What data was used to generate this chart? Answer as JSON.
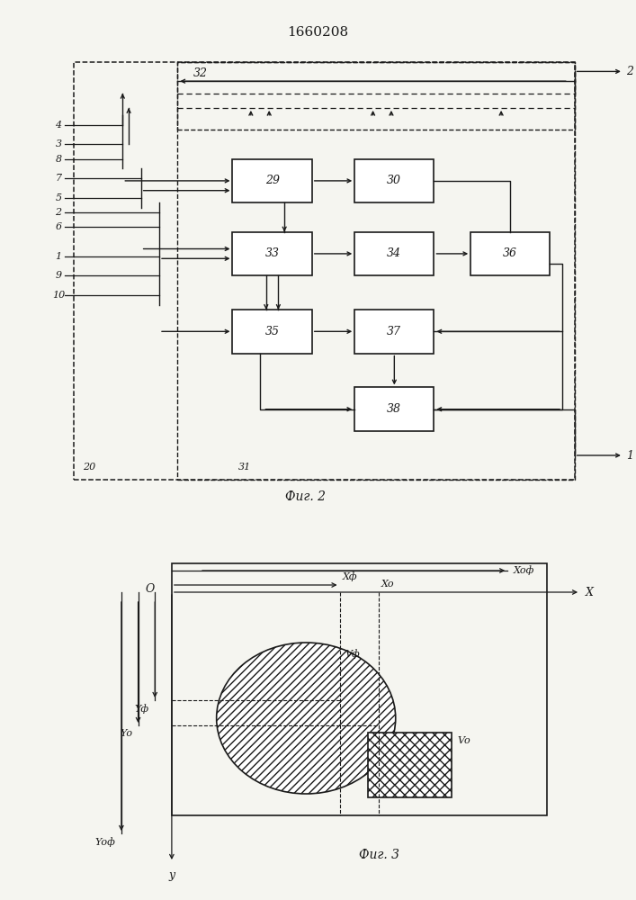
{
  "title": "1660208",
  "fig2_caption": "Фиг. 2",
  "fig3_caption": "Фиг. 3",
  "bg_color": "#f5f5f0",
  "line_color": "#1a1a1a",
  "input_labels": [
    "4",
    "3",
    "8",
    "7",
    "5",
    "2",
    "6",
    "1",
    "9",
    "10"
  ],
  "box_ids": [
    "29",
    "30",
    "33",
    "34",
    "35",
    "36",
    "37",
    "38"
  ],
  "label_20": "20",
  "label_31": "31",
  "label_32": "32",
  "out1": "1",
  "out2": "2",
  "fig3": {
    "O": "O",
    "X_axis": "X",
    "Y_axis": "y",
    "Xof": "Xоф",
    "Xf": "Xф",
    "X0": "Xо",
    "Vf": "Vф",
    "V0": "Vо",
    "Yf": "Yф",
    "Y0": "Yо",
    "Yof": "Yоф"
  }
}
